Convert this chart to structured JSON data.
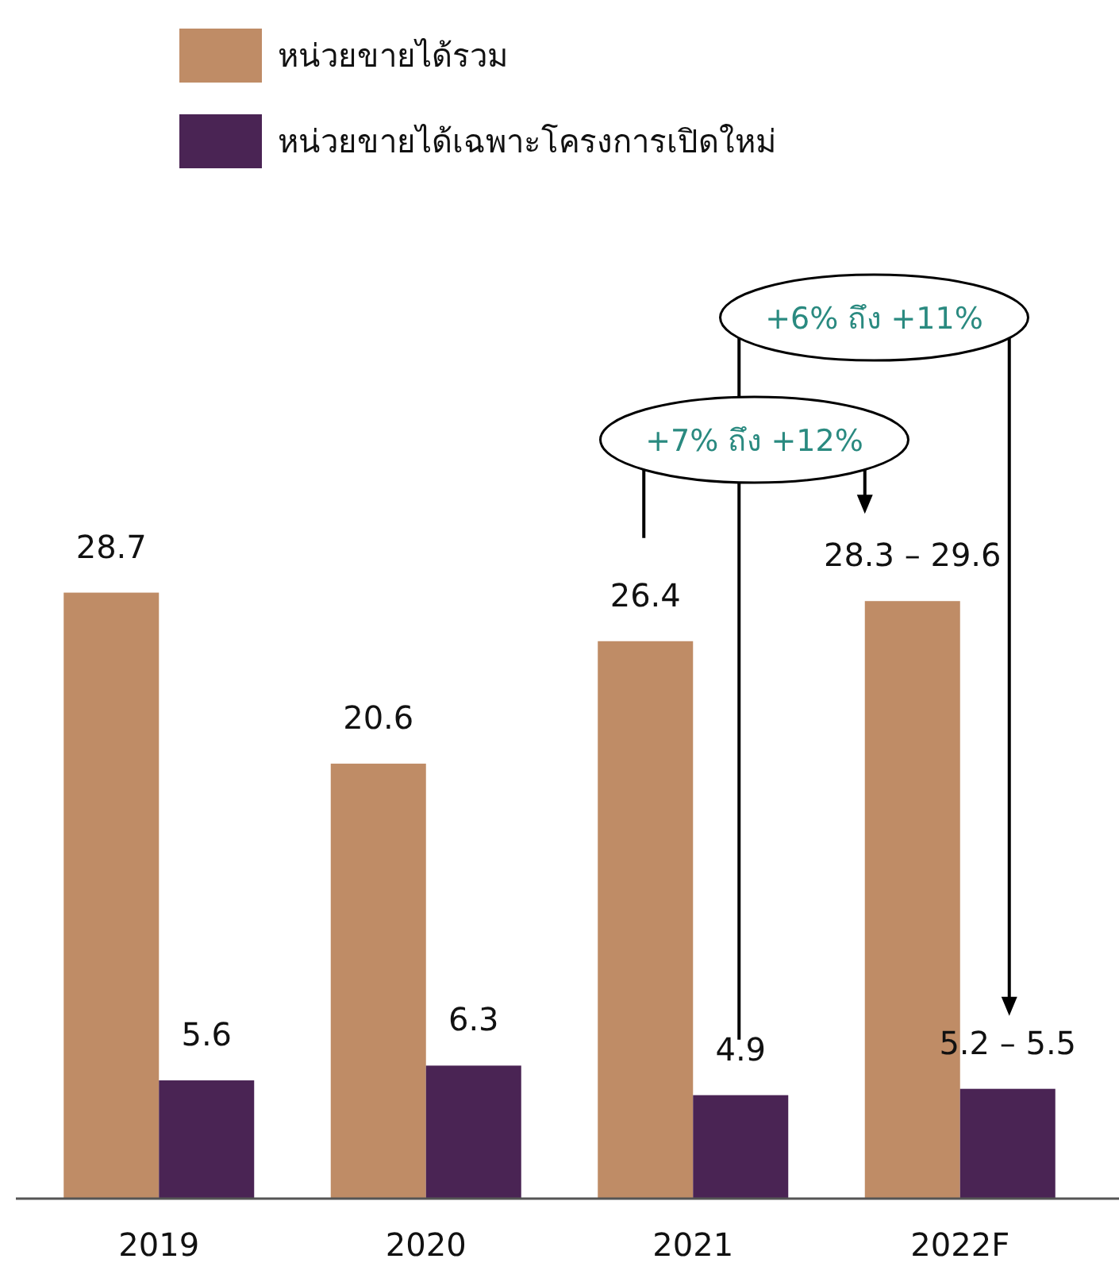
{
  "chart_data": {
    "type": "bar",
    "categories": [
      "2019",
      "2020",
      "2021",
      "2022F"
    ],
    "series": [
      {
        "name": "หน่วยขายได้รวม",
        "color": "#bf8c66",
        "values": [
          28.7,
          20.6,
          26.4,
          28.3
        ],
        "value_labels": [
          "28.7",
          "20.6",
          "26.4",
          "28.3 – 29.6"
        ]
      },
      {
        "name": "หน่วยขายได้เฉพาะโครงการเปิดใหม่",
        "color": "#4a2454",
        "values": [
          5.6,
          6.3,
          4.9,
          5.2
        ],
        "value_labels": [
          "5.6",
          "6.3",
          "4.9",
          "5.2 – 5.5"
        ]
      }
    ],
    "annotations": [
      "+7% ถึง +12%",
      "+6% ถึง +11%"
    ],
    "legend": "top left",
    "grid": false
  }
}
